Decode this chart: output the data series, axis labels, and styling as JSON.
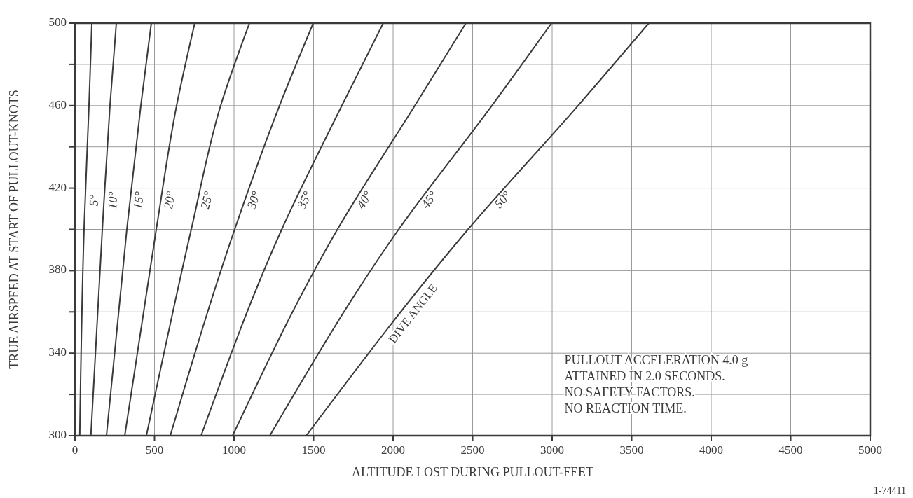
{
  "chart_data": {
    "type": "line",
    "xlabel": "ALTITUDE LOST DURING PULLOUT-FEET",
    "ylabel": "TRUE AIRSPEED AT START OF PULLOUT-KNOTS",
    "annotations": [
      "DIVE ANGLE",
      "PULLOUT ACCELERATION 4.0 g",
      "ATTAINED IN 2.0 SECONDS.",
      "NO SAFETY FACTORS.",
      "NO REACTION TIME.",
      "1-74411"
    ],
    "xlim": [
      0,
      5000
    ],
    "ylim": [
      300,
      500
    ],
    "xticks": [
      0,
      500,
      1000,
      1500,
      2000,
      2500,
      3000,
      3500,
      4000,
      4500,
      5000
    ],
    "yticks": [
      300,
      {
        "value": 320,
        "label": null
      },
      340,
      {
        "value": 360,
        "label": null
      },
      380,
      {
        "value": 400,
        "label": null
      },
      420,
      {
        "value": 440,
        "label": null
      },
      460,
      {
        "value": 480,
        "label": null
      },
      500
    ],
    "grid": true,
    "marker": "none",
    "line_style": "solid",
    "series": [
      {
        "name": "5°",
        "color": "#3a3a3a",
        "x": [
          30,
          57,
          88,
          106
        ],
        "values": [
          300,
          400,
          460,
          500
        ]
      },
      {
        "name": "10°",
        "color": "#3a3a3a",
        "x": [
          100,
          172,
          220,
          260
        ],
        "values": [
          300,
          400,
          460,
          500
        ]
      },
      {
        "name": "15°",
        "color": "#3a3a3a",
        "x": [
          198,
          326,
          414,
          480
        ],
        "values": [
          300,
          400,
          460,
          500
        ]
      },
      {
        "name": "20°",
        "color": "#3a3a3a",
        "x": [
          313,
          511,
          639,
          753
        ],
        "values": [
          300,
          400,
          460,
          500
        ]
      },
      {
        "name": "25°",
        "color": "#3a3a3a",
        "x": [
          449,
          731,
          916,
          1097
        ],
        "values": [
          300,
          400,
          460,
          500
        ]
      },
      {
        "name": "30°",
        "color": "#3a3a3a",
        "x": [
          599,
          1004,
          1286,
          1498
        ],
        "values": [
          300,
          400,
          460,
          500
        ]
      },
      {
        "name": "35°",
        "color": "#3a3a3a",
        "x": [
          793,
          1300,
          1678,
          1938
        ],
        "values": [
          300,
          400,
          460,
          500
        ]
      },
      {
        "name": "40°",
        "color": "#3a3a3a",
        "x": [
          991,
          1650,
          2137,
          2458
        ],
        "values": [
          300,
          400,
          460,
          500
        ]
      },
      {
        "name": "45°",
        "color": "#3a3a3a",
        "x": [
          1225,
          2035,
          2621,
          2996
        ],
        "values": [
          300,
          400,
          460,
          500
        ]
      },
      {
        "name": "50°",
        "color": "#3a3a3a",
        "x": [
          1454,
          2471,
          3163,
          3608
        ],
        "values": [
          300,
          400,
          460,
          500
        ]
      }
    ]
  }
}
